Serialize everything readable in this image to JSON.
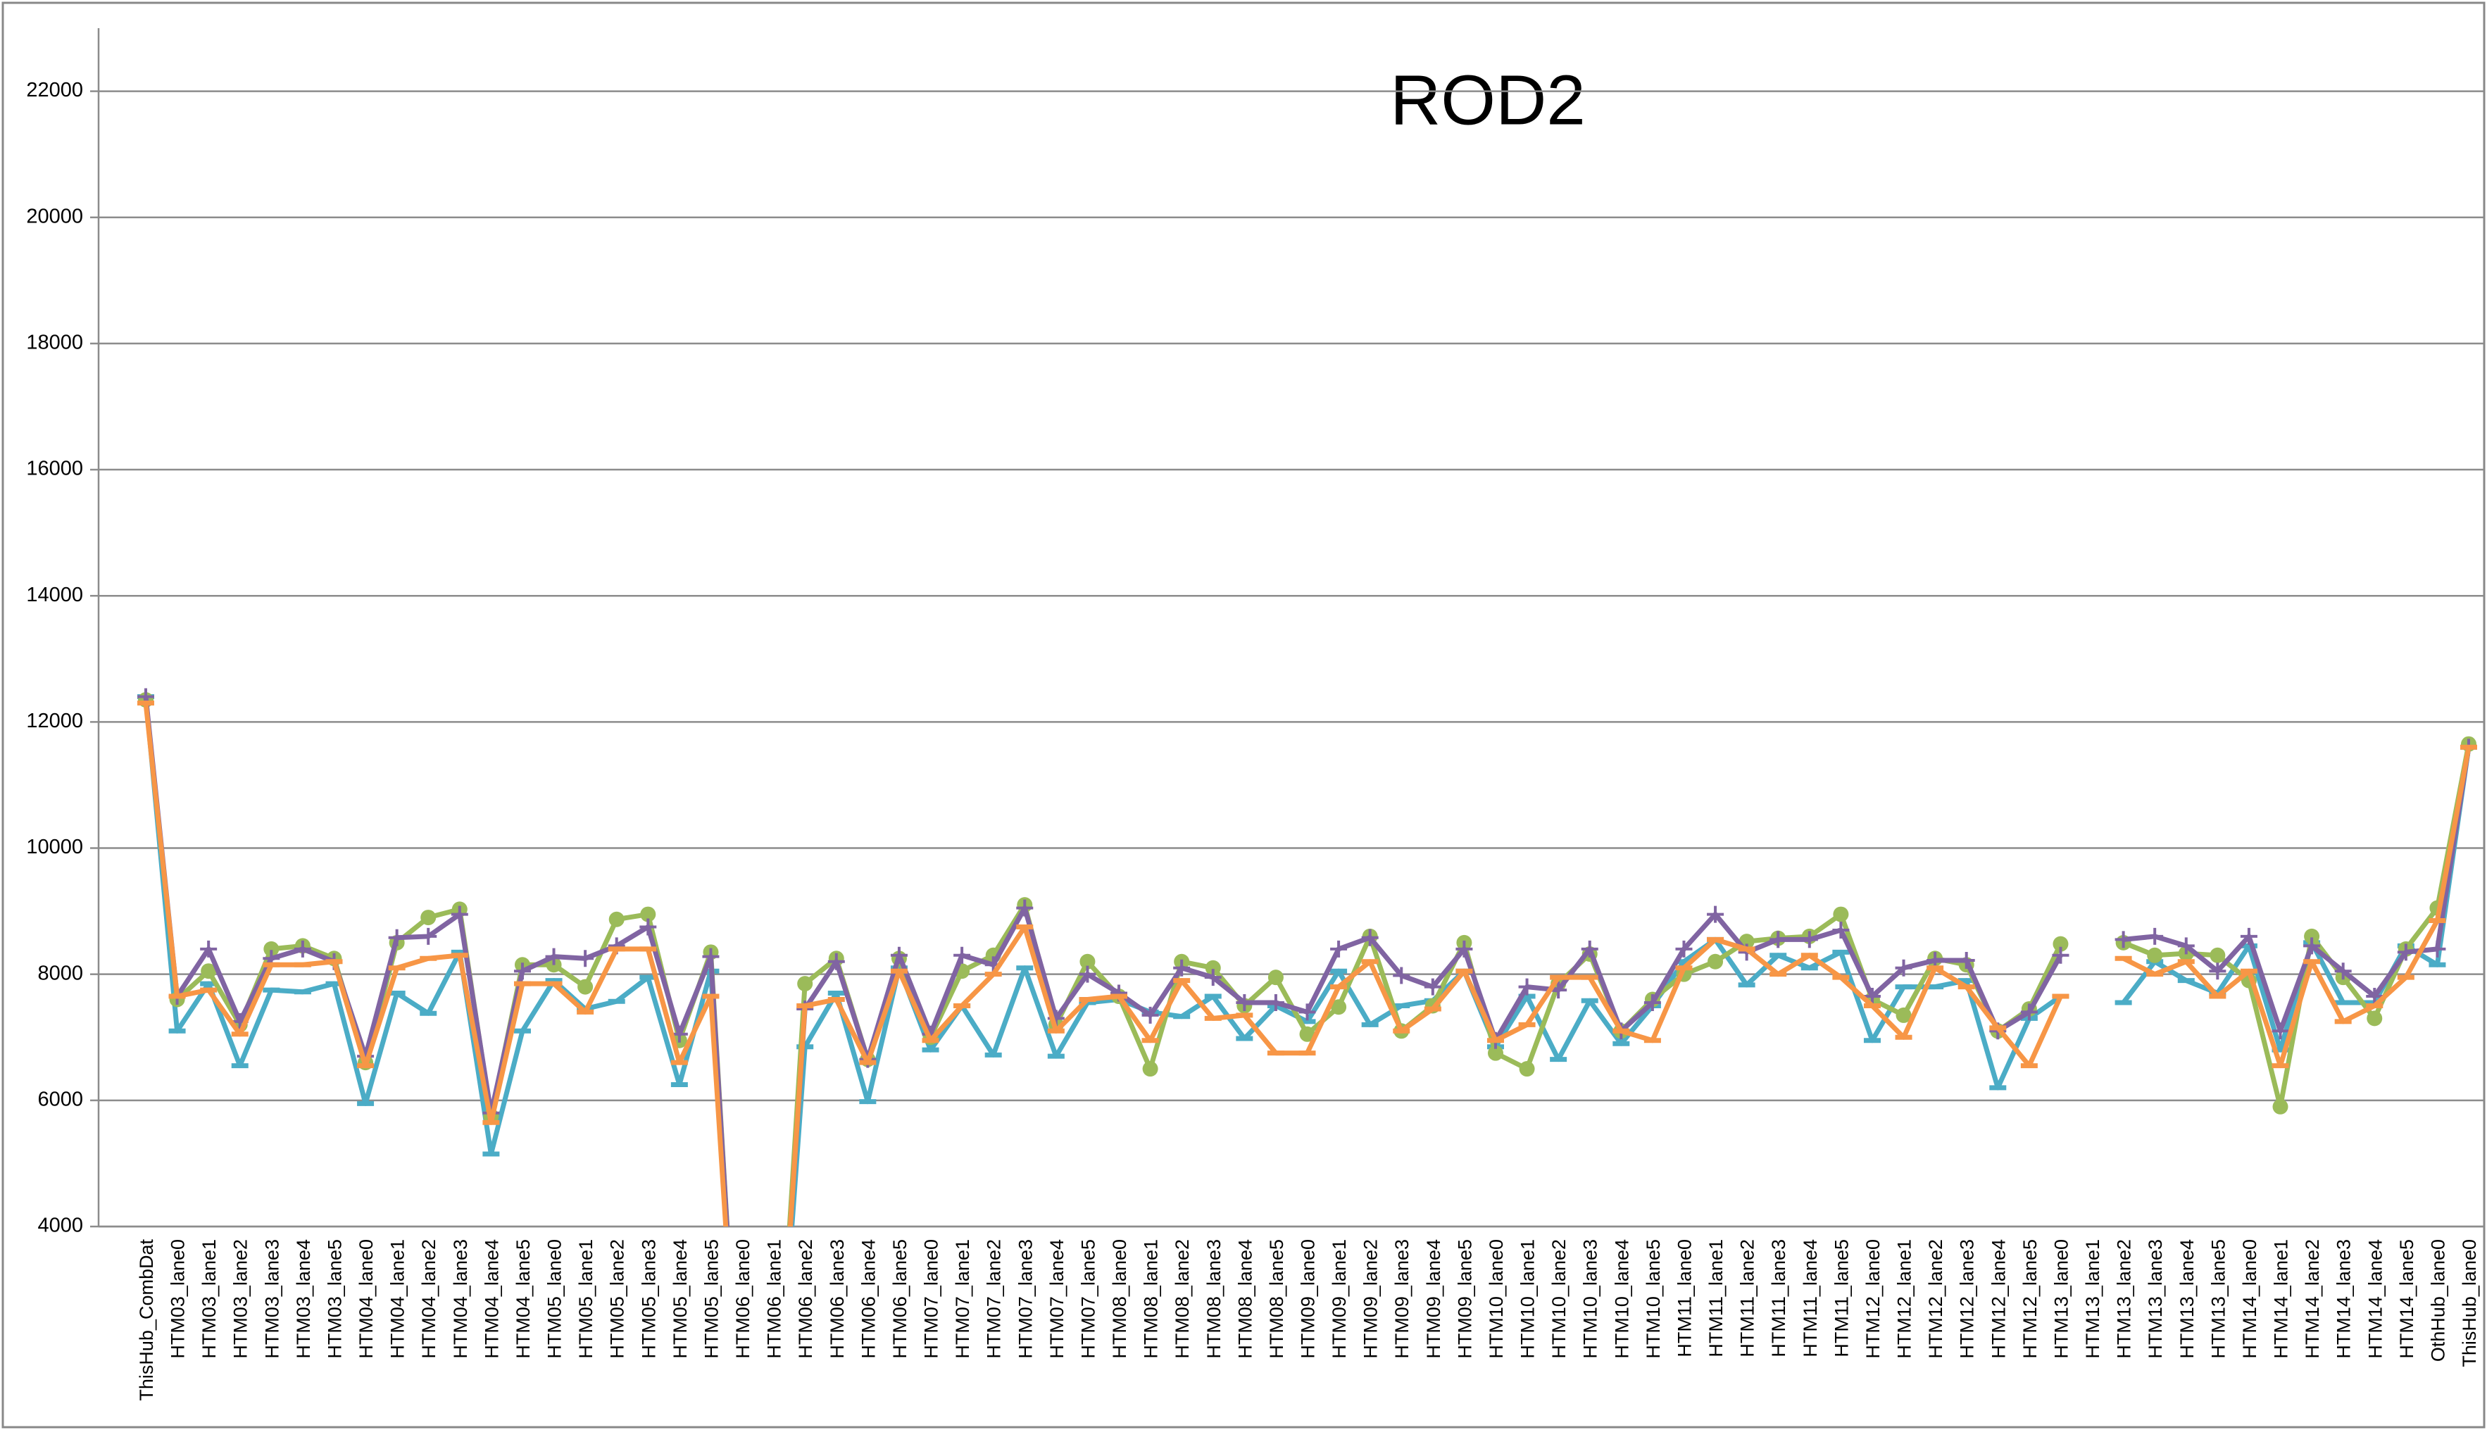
{
  "chart_data": {
    "type": "line",
    "title": "ROD2",
    "categories": [
      "ThisHub_CombDat",
      "HTM03_lane0",
      "HTM03_lane1",
      "HTM03_lane2",
      "HTM03_lane3",
      "HTM03_lane4",
      "HTM03_lane5",
      "HTM04_lane0",
      "HTM04_lane1",
      "HTM04_lane2",
      "HTM04_lane3",
      "HTM04_lane4",
      "HTM04_lane5",
      "HTM05_lane0",
      "HTM05_lane1",
      "HTM05_lane2",
      "HTM05_lane3",
      "HTM05_lane4",
      "HTM05_lane5",
      "HTM06_lane0",
      "HTM06_lane1",
      "HTM06_lane2",
      "HTM06_lane3",
      "HTM06_lane4",
      "HTM06_lane5",
      "HTM07_lane0",
      "HTM07_lane1",
      "HTM07_lane2",
      "HTM07_lane3",
      "HTM07_lane4",
      "HTM07_lane5",
      "HTM08_lane0",
      "HTM08_lane1",
      "HTM08_lane2",
      "HTM08_lane3",
      "HTM08_lane4",
      "HTM08_lane5",
      "HTM09_lane0",
      "HTM09_lane1",
      "HTM09_lane2",
      "HTM09_lane3",
      "HTM09_lane4",
      "HTM09_lane5",
      "HTM10_lane0",
      "HTM10_lane1",
      "HTM10_lane2",
      "HTM10_lane3",
      "HTM10_lane4",
      "HTM10_lane5",
      "HTM11_lane0",
      "HTM11_lane1",
      "HTM11_lane2",
      "HTM11_lane3",
      "HTM11_lane4",
      "HTM11_lane5",
      "HTM12_lane0",
      "HTM12_lane1",
      "HTM12_lane2",
      "HTM12_lane3",
      "HTM12_lane4",
      "HTM12_lane5",
      "HTM13_lane0",
      "HTM13_lane1",
      "HTM13_lane2",
      "HTM13_lane3",
      "HTM13_lane4",
      "HTM13_lane5",
      "HTM14_lane0",
      "HTM14_lane1",
      "HTM14_lane2",
      "HTM14_lane3",
      "HTM14_lane4",
      "HTM14_lane5",
      "OthHub_lane0",
      "ThisHub_lane0"
    ],
    "series": [
      {
        "color": "#4bacc6",
        "marker": "dash",
        "values": [
          12400,
          7100,
          7850,
          6550,
          7750,
          7720,
          7850,
          5950,
          7700,
          7380,
          8350,
          5150,
          7100,
          7900,
          7450,
          7570,
          7950,
          6250,
          8050,
          0,
          0,
          6850,
          7700,
          5980,
          8100,
          6800,
          7500,
          6720,
          8100,
          6700,
          7550,
          7600,
          7400,
          7330,
          7650,
          6980,
          7500,
          7250,
          8050,
          7200,
          7500,
          7580,
          8050,
          6850,
          7650,
          6650,
          7580,
          6900,
          7500,
          8200,
          8550,
          7830,
          8300,
          8100,
          8350,
          6950,
          7800,
          7800,
          7900,
          6200,
          7300,
          7650,
          null,
          7550,
          8200,
          7900,
          7700,
          8450,
          6800,
          8500,
          7550,
          7550,
          8450,
          8150,
          11600
        ]
      },
      {
        "color": "#9bbb59",
        "marker": "circle",
        "values": [
          12350,
          7600,
          8050,
          7200,
          8400,
          8450,
          8250,
          6600,
          8500,
          8900,
          9030,
          5750,
          8150,
          8150,
          7800,
          8870,
          8950,
          6950,
          8350,
          0,
          0,
          7850,
          8250,
          6650,
          8250,
          7000,
          8050,
          8300,
          9100,
          7200,
          8200,
          7650,
          6500,
          8200,
          8100,
          7500,
          7950,
          7050,
          7480,
          8600,
          7100,
          7500,
          8500,
          6750,
          6500,
          7850,
          8320,
          7100,
          7600,
          8000,
          8200,
          8520,
          8570,
          8600,
          8950,
          7600,
          7350,
          8250,
          8150,
          7100,
          7450,
          8480,
          null,
          8500,
          8300,
          8330,
          8300,
          7900,
          5900,
          8600,
          7950,
          7300,
          8400,
          9050,
          11650
        ]
      },
      {
        "color": "#8064a2",
        "marker": "plus",
        "values": [
          12400,
          7650,
          8400,
          7250,
          8250,
          8400,
          8200,
          6700,
          8580,
          8600,
          8950,
          5800,
          8050,
          8280,
          8250,
          8450,
          8750,
          7050,
          8280,
          0,
          0,
          7450,
          8200,
          6650,
          8300,
          7050,
          8300,
          8150,
          9050,
          7300,
          8000,
          7700,
          7350,
          8100,
          7950,
          7550,
          7550,
          7400,
          8400,
          8580,
          7980,
          7800,
          8400,
          6950,
          7800,
          7750,
          8400,
          7100,
          7550,
          8400,
          8950,
          8350,
          8550,
          8550,
          8700,
          7650,
          8100,
          8220,
          8220,
          7100,
          7400,
          8300,
          null,
          8550,
          8600,
          8450,
          8050,
          8600,
          7100,
          8450,
          8050,
          7650,
          8350,
          8400,
          11600
        ]
      },
      {
        "color": "#f79646",
        "marker": "dash",
        "values": [
          12300,
          7650,
          7750,
          7050,
          8150,
          8150,
          8200,
          6550,
          8100,
          8250,
          8300,
          5650,
          7850,
          7850,
          7400,
          8400,
          8400,
          6600,
          7650,
          0,
          0,
          7500,
          7600,
          6600,
          8050,
          6950,
          7500,
          8000,
          8750,
          7100,
          7600,
          7650,
          6950,
          7900,
          7300,
          7350,
          6750,
          6750,
          7800,
          8200,
          7100,
          7450,
          8050,
          6950,
          7200,
          7950,
          7950,
          7100,
          6950,
          8100,
          8550,
          8400,
          8000,
          8300,
          7950,
          7500,
          7000,
          8100,
          7800,
          7150,
          6550,
          7650,
          null,
          8250,
          8000,
          8200,
          7650,
          8050,
          6550,
          8200,
          7250,
          7500,
          7950,
          8850,
          11600
        ]
      }
    ],
    "ylim": [
      4000,
      23000
    ],
    "yticks": [
      4000,
      6000,
      8000,
      10000,
      12000,
      14000,
      16000,
      18000,
      20000,
      22000
    ],
    "grid": true
  }
}
